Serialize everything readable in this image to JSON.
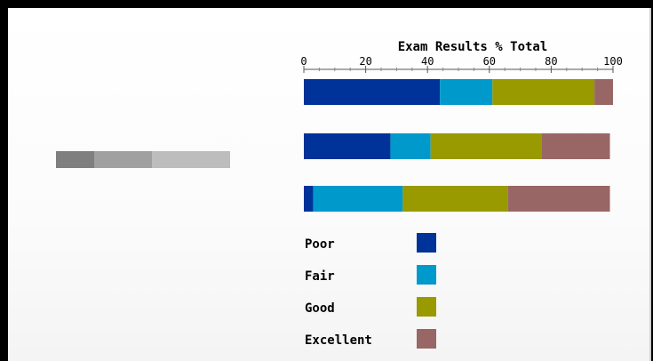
{
  "chart_data": {
    "type": "bar",
    "orientation": "horizontal",
    "stacked": true,
    "title": "Exam Results % Total",
    "xlabel": "",
    "ylabel": "",
    "xlim": [
      0,
      100
    ],
    "ticks": [
      0,
      20,
      40,
      60,
      80,
      100
    ],
    "categories": [
      "",
      "",
      ""
    ],
    "series": [
      {
        "name": "Poor",
        "color": "#003399",
        "values": [
          44,
          28,
          3
        ]
      },
      {
        "name": "Fair",
        "color": "#0099cc",
        "values": [
          17,
          13,
          29
        ]
      },
      {
        "name": "Good",
        "color": "#999900",
        "values": [
          33,
          36,
          34
        ]
      },
      {
        "name": "Excellent",
        "color": "#996666",
        "values": [
          6,
          22,
          33
        ]
      }
    ],
    "grid": false,
    "legend": "bottom"
  },
  "placeholder_colors": [
    "#7f7f7f",
    "#a0a0a0",
    "#bdbdbd"
  ],
  "placeholder_values": [
    22,
    33,
    45
  ]
}
